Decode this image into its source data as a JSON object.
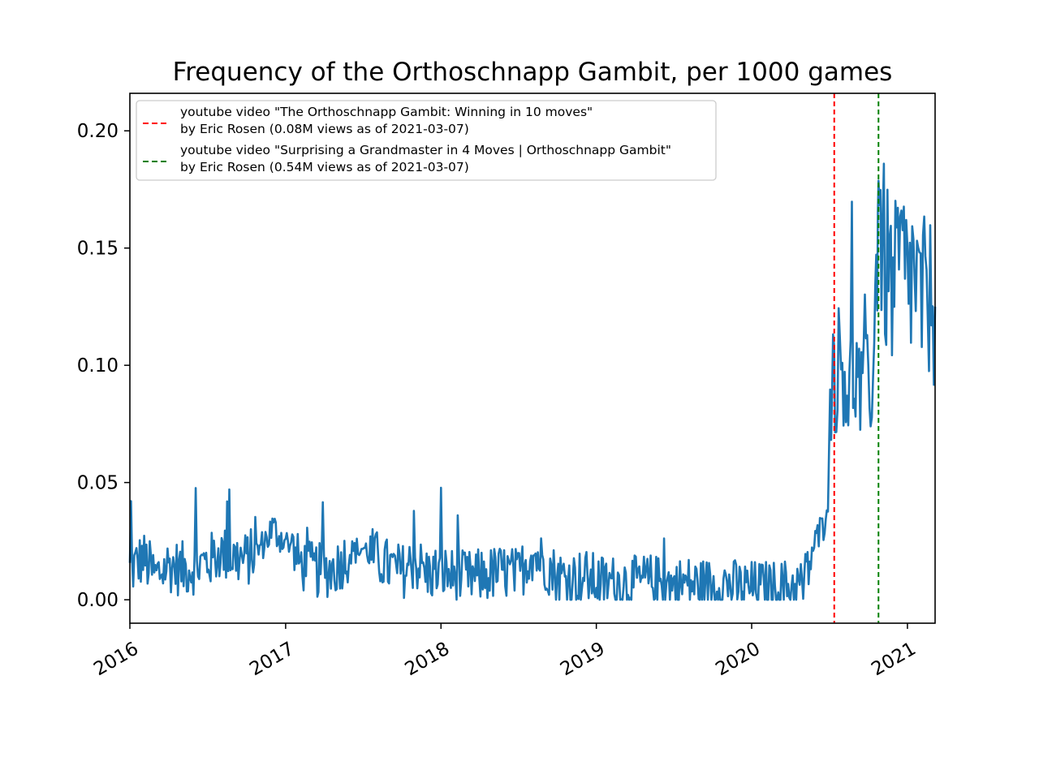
{
  "chart_data": {
    "type": "line",
    "title": "Frequency of the Orthoschnapp Gambit, per 1000 games",
    "xlabel": "",
    "ylabel": "",
    "x_range": [
      "2016-01-01",
      "2021-03-07"
    ],
    "ylim": [
      -0.01,
      0.216
    ],
    "x_ticks": [
      "2016",
      "2017",
      "2018",
      "2019",
      "2020",
      "2021"
    ],
    "y_ticks": [
      "0.00",
      "0.05",
      "0.10",
      "0.15",
      "0.20"
    ],
    "y_tick_values": [
      0.0,
      0.05,
      0.1,
      0.15,
      0.2
    ],
    "grid": false,
    "legend_position": "upper-left",
    "colors": {
      "series": "#1f77b4",
      "video1": "#ff0000",
      "video2": "#008000"
    },
    "series": [
      {
        "name": "",
        "resolution": "weekly-approx",
        "x": [
          "2016-01-01",
          "2016-02-01",
          "2016-03-01",
          "2016-04-01",
          "2016-05-01",
          "2016-06-01",
          "2016-07-01",
          "2016-08-01",
          "2016-09-01",
          "2016-10-01",
          "2016-11-01",
          "2016-12-01",
          "2017-01-01",
          "2017-02-01",
          "2017-03-01",
          "2017-04-01",
          "2017-05-01",
          "2017-06-01",
          "2017-07-01",
          "2017-08-01",
          "2017-09-01",
          "2017-10-01",
          "2017-11-01",
          "2017-12-01",
          "2018-01-01",
          "2018-02-01",
          "2018-03-01",
          "2018-04-01",
          "2018-05-01",
          "2018-06-01",
          "2018-07-01",
          "2018-08-01",
          "2018-09-01",
          "2018-10-01",
          "2018-11-01",
          "2018-12-01",
          "2019-01-01",
          "2019-02-01",
          "2019-03-01",
          "2019-04-01",
          "2019-05-01",
          "2019-06-01",
          "2019-07-01",
          "2019-08-01",
          "2019-09-01",
          "2019-10-01",
          "2019-11-01",
          "2019-12-01",
          "2020-01-01",
          "2020-02-01",
          "2020-03-01",
          "2020-04-01",
          "2020-05-01",
          "2020-06-01",
          "2020-06-15",
          "2020-07-01",
          "2020-07-08",
          "2020-07-15",
          "2020-08-01",
          "2020-08-15",
          "2020-09-01",
          "2020-09-15",
          "2020-10-01",
          "2020-10-15",
          "2020-10-22",
          "2020-10-25",
          "2020-11-01",
          "2020-11-15",
          "2020-12-01",
          "2020-12-15",
          "2021-01-01",
          "2021-01-15",
          "2021-02-01",
          "2021-02-15",
          "2021-03-07"
        ],
        "values": [
          0.012,
          0.018,
          0.01,
          0.015,
          0.013,
          0.014,
          0.016,
          0.02,
          0.018,
          0.017,
          0.022,
          0.03,
          0.025,
          0.016,
          0.013,
          0.012,
          0.014,
          0.02,
          0.022,
          0.018,
          0.014,
          0.012,
          0.016,
          0.011,
          0.012,
          0.01,
          0.009,
          0.01,
          0.011,
          0.012,
          0.01,
          0.02,
          0.016,
          0.01,
          0.009,
          0.01,
          0.008,
          0.007,
          0.008,
          0.007,
          0.008,
          0.007,
          0.006,
          0.007,
          0.006,
          0.006,
          0.007,
          0.005,
          0.005,
          0.005,
          0.005,
          0.006,
          0.006,
          0.026,
          0.03,
          0.055,
          0.11,
          0.095,
          0.105,
          0.09,
          0.098,
          0.085,
          0.09,
          0.1,
          0.16,
          0.19,
          0.15,
          0.14,
          0.13,
          0.145,
          0.135,
          0.14,
          0.125,
          0.13,
          0.125
        ]
      }
    ],
    "annotations": [
      {
        "type": "vline",
        "date": "2020-07-13",
        "color": "#ff0000",
        "style": "dashed",
        "label_line1": "youtube video \"The Orthoschnapp Gambit: Winning in 10 moves\"",
        "label_line2": "by Eric Rosen (0.08M views as of 2021-03-07)"
      },
      {
        "type": "vline",
        "date": "2020-10-25",
        "color": "#008000",
        "style": "dashed",
        "label_line1": "youtube video \"Surprising a Grandmaster in 4 Moves | Orthoschnapp Gambit\"",
        "label_line2": "by Eric Rosen (0.54M views as of 2021-03-07)"
      }
    ]
  }
}
